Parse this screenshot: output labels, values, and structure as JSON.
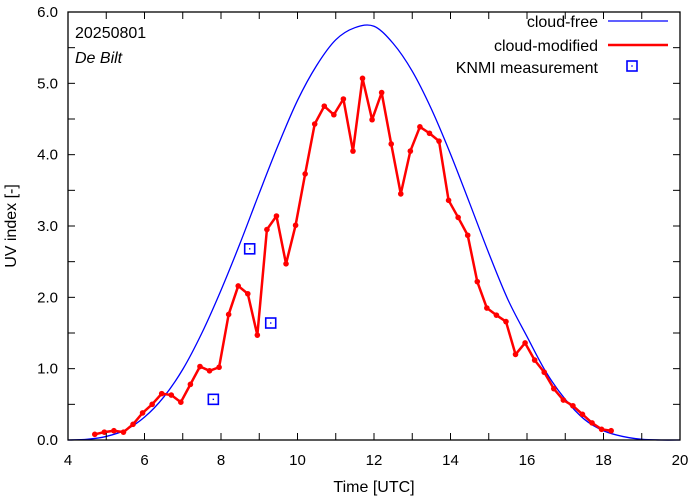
{
  "chart_data": {
    "type": "line",
    "annotations": {
      "date": "20250801",
      "station": "De Bilt"
    },
    "xlabel": "Time  [UTC]",
    "ylabel": "UV index  [-]",
    "xlim": [
      4,
      20
    ],
    "ylim": [
      0,
      6
    ],
    "x_ticks": [
      4,
      6,
      8,
      10,
      12,
      14,
      16,
      18,
      20
    ],
    "x_tick_labels": [
      "4",
      "6",
      "8",
      "10",
      "12",
      "14",
      "16",
      "18",
      "20"
    ],
    "y_ticks": [
      0,
      1,
      2,
      3,
      4,
      5,
      6
    ],
    "y_tick_labels": [
      "0.0",
      "1.0",
      "2.0",
      "3.0",
      "4.0",
      "5.0",
      "6.0"
    ],
    "grid": false,
    "legend_position": "top-right",
    "series": [
      {
        "name": "cloud-free",
        "color": "#0000ff",
        "x": [
          4,
          4.5,
          5,
          5.5,
          6,
          6.5,
          7,
          7.5,
          8,
          8.5,
          9,
          9.5,
          10,
          10.5,
          11,
          11.5,
          12,
          12.5,
          13,
          13.5,
          14,
          14.5,
          15,
          15.5,
          16,
          16.5,
          17,
          17.5,
          18,
          18.5,
          19,
          19.5,
          20
        ],
        "y": [
          0.0,
          0.01,
          0.05,
          0.14,
          0.32,
          0.6,
          0.99,
          1.5,
          2.1,
          2.76,
          3.46,
          4.14,
          4.76,
          5.25,
          5.61,
          5.78,
          5.8,
          5.56,
          5.17,
          4.64,
          4.01,
          3.32,
          2.62,
          1.97,
          1.45,
          0.95,
          0.57,
          0.29,
          0.13,
          0.05,
          0.01,
          0.0,
          0.0
        ]
      },
      {
        "name": "cloud-modified",
        "color": "#ff0000",
        "x": [
          4.7,
          4.95,
          5.2,
          5.45,
          5.7,
          5.95,
          6.2,
          6.45,
          6.7,
          6.95,
          7.2,
          7.45,
          7.7,
          7.95,
          8.2,
          8.45,
          8.7,
          8.95,
          9.2,
          9.45,
          9.7,
          9.95,
          10.2,
          10.45,
          10.7,
          10.95,
          11.2,
          11.45,
          11.7,
          11.95,
          12.2,
          12.45,
          12.7,
          12.95,
          13.2,
          13.45,
          13.7,
          13.95,
          14.2,
          14.45,
          14.7,
          14.95,
          15.2,
          15.45,
          15.7,
          15.95,
          16.2,
          16.45,
          16.7,
          16.95,
          17.2,
          17.45,
          17.7,
          17.95,
          18.2
        ],
        "y": [
          0.08,
          0.11,
          0.13,
          0.11,
          0.22,
          0.38,
          0.5,
          0.65,
          0.63,
          0.53,
          0.78,
          1.03,
          0.97,
          1.02,
          1.76,
          2.16,
          2.05,
          1.47,
          2.95,
          3.14,
          2.47,
          3.01,
          3.73,
          4.43,
          4.68,
          4.56,
          4.78,
          4.05,
          5.07,
          4.49,
          4.87,
          4.15,
          3.45,
          4.05,
          4.39,
          4.3,
          4.19,
          3.36,
          3.12,
          2.87,
          2.22,
          1.85,
          1.75,
          1.66,
          1.2,
          1.36,
          1.12,
          0.95,
          0.72,
          0.56,
          0.48,
          0.36,
          0.24,
          0.15,
          0.13
        ]
      },
      {
        "name": "KNMI measurement",
        "color": "#0000ff",
        "marker": "square-dot",
        "x": [
          7.8,
          8.75,
          9.3
        ],
        "y": [
          0.57,
          2.68,
          1.64
        ]
      }
    ]
  }
}
